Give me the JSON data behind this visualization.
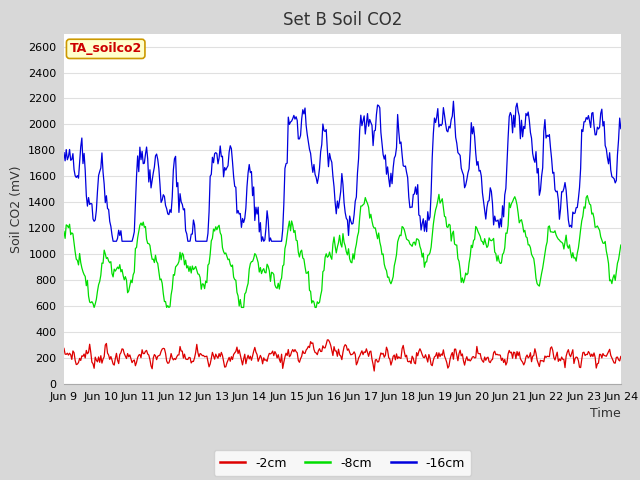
{
  "title": "Set B Soil CO2",
  "ylabel": "Soil CO2 (mV)",
  "xlabel": "Time",
  "annotation": "TA_soilco2",
  "annotation_color": "#cc0000",
  "annotation_bg": "#ffffcc",
  "annotation_border": "#cc9900",
  "ylim": [
    0,
    2700
  ],
  "yticks": [
    0,
    200,
    400,
    600,
    800,
    1000,
    1200,
    1400,
    1600,
    1800,
    2000,
    2200,
    2400,
    2600
  ],
  "xtick_labels": [
    "Jun 9",
    "Jun 10",
    "Jun 11",
    "Jun 12",
    "Jun 13",
    "Jun 14",
    "Jun 15",
    "Jun 16",
    "Jun 17",
    "Jun 18",
    "Jun 19",
    "Jun 20",
    "Jun 21",
    "Jun 22",
    "Jun 23",
    "Jun 24"
  ],
  "fig_bg": "#d8d8d8",
  "plot_bg": "#ffffff",
  "line_2cm_color": "#dd0000",
  "line_8cm_color": "#00dd00",
  "line_16cm_color": "#0000dd",
  "legend_labels": [
    "-2cm",
    "-8cm",
    "-16cm"
  ],
  "grid_color": "#e0e0e0",
  "title_fontsize": 12,
  "axis_fontsize": 8,
  "label_fontsize": 9
}
